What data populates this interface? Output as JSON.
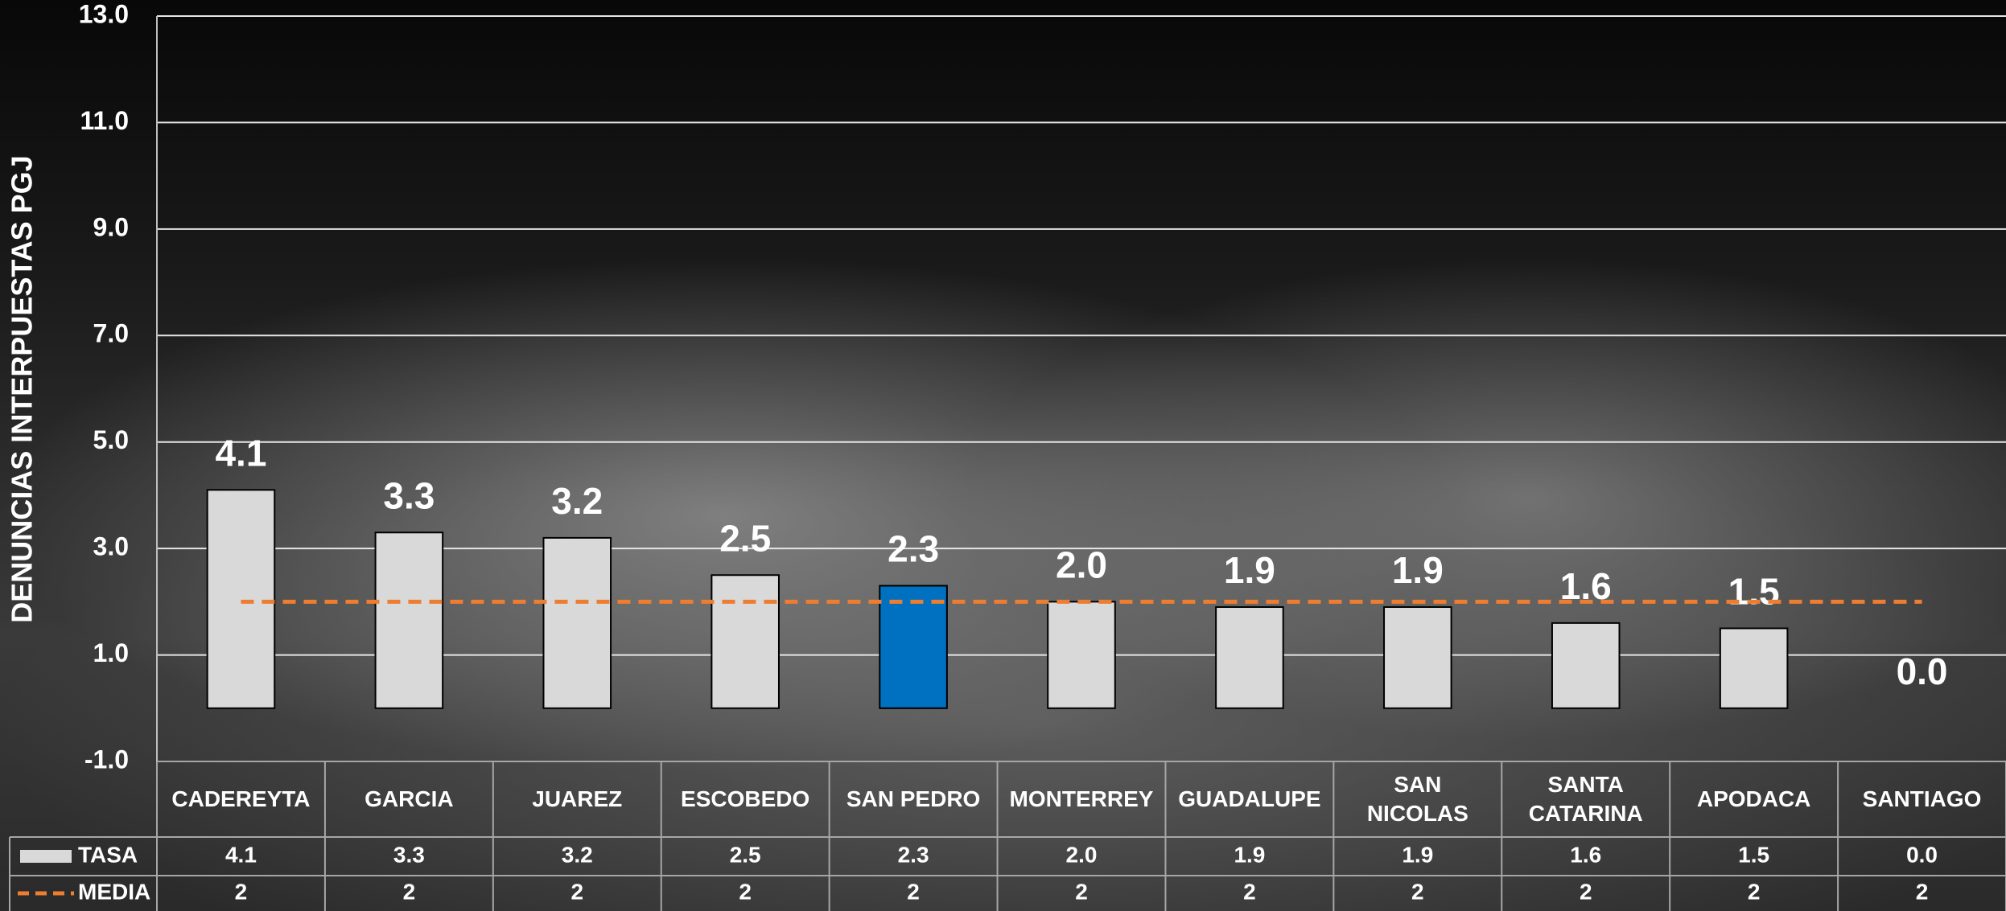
{
  "chart_data": {
    "type": "bar",
    "y_label": "DENUNCIAS INTERPUESTAS PGJ",
    "categories": [
      "CADEREYTA",
      "GARCIA",
      "JUAREZ",
      "ESCOBEDO",
      "SAN PEDRO",
      "MONTERREY",
      "GUADALUPE",
      "SAN NICOLAS",
      "SANTA CATARINA",
      "APODACA",
      "SANTIAGO"
    ],
    "series": [
      {
        "name": "TASA",
        "color": "#d9d9d9",
        "colors": [
          "#d9d9d9",
          "#d9d9d9",
          "#d9d9d9",
          "#d9d9d9",
          "#0070c0",
          "#d9d9d9",
          "#d9d9d9",
          "#d9d9d9",
          "#d9d9d9",
          "#d9d9d9",
          "#d9d9d9"
        ],
        "values": [
          4.1,
          3.3,
          3.2,
          2.5,
          2.3,
          2.0,
          1.9,
          1.9,
          1.6,
          1.5,
          0.0
        ],
        "value_labels": [
          "4.1",
          "3.3",
          "3.2",
          "2.5",
          "2.3",
          "2.0",
          "1.9",
          "1.9",
          "1.6",
          "1.5",
          "0.0"
        ]
      },
      {
        "name": "MEDIA",
        "type": "line",
        "color": "#ed7d31",
        "dashed": true,
        "values": [
          2,
          2,
          2,
          2,
          2,
          2,
          2,
          2,
          2,
          2,
          2
        ]
      }
    ],
    "ylim": [
      -1,
      13
    ],
    "yticks": [
      {
        "value": -1,
        "label": "-1.0"
      },
      {
        "value": 1,
        "label": "1.0"
      },
      {
        "value": 3,
        "label": "3.0"
      },
      {
        "value": 5,
        "label": "5.0"
      },
      {
        "value": 7,
        "label": "7.0"
      },
      {
        "value": 9,
        "label": "9.0"
      },
      {
        "value": 11,
        "label": "11.0"
      },
      {
        "value": 13,
        "label": "13.0"
      }
    ],
    "grid": true
  }
}
